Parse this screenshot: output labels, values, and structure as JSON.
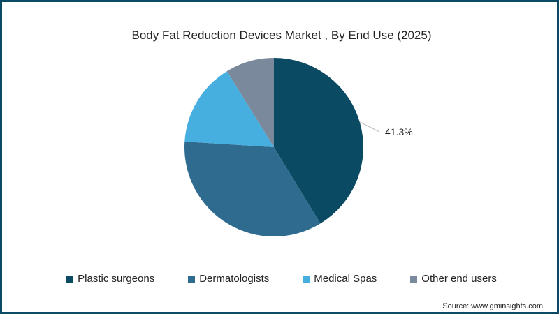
{
  "chart_data": {
    "type": "pie",
    "title": "Body Fat Reduction Devices Market , By End Use (2025)",
    "categories": [
      "Plastic surgeons",
      "Dermatologists",
      "Medical Spas",
      "Other end users"
    ],
    "values": [
      41.3,
      34.7,
      15.2,
      8.8
    ],
    "colors": [
      "#0b4a63",
      "#2e6b8e",
      "#47aee0",
      "#7a8a9c"
    ],
    "data_labels": [
      {
        "category": "Plastic surgeons",
        "text": "41.3%"
      }
    ],
    "legend_position": "bottom",
    "start_angle": "top, clockwise"
  },
  "title": "Body Fat Reduction Devices Market , By End Use (2025)",
  "legend": [
    {
      "label": "Plastic surgeons",
      "color": "#0b4a63"
    },
    {
      "label": "Dermatologists",
      "color": "#2e6b8e"
    },
    {
      "label": "Medical Spas",
      "color": "#47aee0"
    },
    {
      "label": "Other end users",
      "color": "#7a8a9c"
    }
  ],
  "label_41": "41.3%",
  "source": "Source: www.gminsights.com"
}
